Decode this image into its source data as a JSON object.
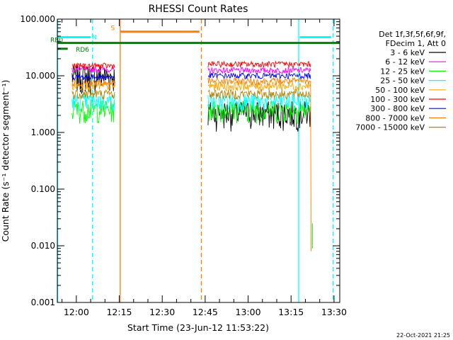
{
  "chart_data": {
    "type": "line",
    "title": "RHESSI Count Rates",
    "xlabel": "Start Time (23-Jun-12 11:53:22)",
    "ylabel": "Count Rate (s⁻¹ detector segment⁻¹)",
    "yscale": "log",
    "ylim": [
      0.001,
      100
    ],
    "xlim": [
      "11:53:22",
      "13:32:00"
    ],
    "x_ticks": [
      "12:00",
      "12:15",
      "12:30",
      "12:45",
      "13:00",
      "13:15",
      "13:30"
    ],
    "y_ticks": [
      "0.001",
      "0.010",
      "0.100",
      "1.000",
      "10.000",
      "100.000"
    ],
    "grid": false,
    "legend_position": "right",
    "legend_header": [
      "Det 1f,3f,5f,6f,9f,",
      "FDecim 1, Att 0"
    ],
    "timestamp": "22-Oct-2021 21:25",
    "segments": [
      [
        "11:58:30",
        "12:13:30"
      ],
      [
        "12:46:00",
        "13:22:00"
      ]
    ],
    "series": [
      {
        "name": "3 - 6 keV",
        "color": "#000000",
        "levels": [
          10.0,
          2.3
        ]
      },
      {
        "name": "6 - 12 keV",
        "color": "#ff00ff",
        "levels": [
          13.0,
          12.5
        ]
      },
      {
        "name": "12 - 25 keV",
        "color": "#00ff00",
        "levels": [
          2.6,
          2.6
        ]
      },
      {
        "name": "25 - 50 keV",
        "color": "#00ffff",
        "levels": [
          3.6,
          3.6
        ]
      },
      {
        "name": "50 - 100 keV",
        "color": "#ffa500",
        "levels": [
          6.6,
          6.6
        ]
      },
      {
        "name": "100 - 300 keV",
        "color": "#ff0000",
        "levels": [
          15.0,
          16.0
        ]
      },
      {
        "name": "300 - 800 keV",
        "color": "#0000ff",
        "levels": [
          9.5,
          10.0
        ]
      },
      {
        "name": "800 - 7000 keV",
        "color": "#ff8000",
        "levels": [
          7.5,
          8.0
        ]
      },
      {
        "name": "7000 - 15000 keV",
        "color": "#b8860b",
        "levels": [
          4.8,
          4.8
        ]
      }
    ],
    "flags": [
      {
        "label": "RB0",
        "color": "#008000",
        "y": 38,
        "start": "11:53:22",
        "end": "13:32:00"
      },
      {
        "label": "RD6",
        "color": "#008000",
        "y": 30,
        "start": "11:53:22",
        "end": "11:57:00"
      },
      {
        "label": "N",
        "color": "#00ffff",
        "y": 48,
        "start": "11:53:22",
        "end": "12:05:00"
      },
      {
        "label": "",
        "color": "#00ffff",
        "y": 48,
        "start": "13:18:00",
        "end": "13:29:00"
      },
      {
        "label": "S",
        "color": "#ff8000",
        "y": 60,
        "start": "12:15:30",
        "end": "12:43:00"
      }
    ],
    "vlines": [
      {
        "time": "11:53:30",
        "color": "#00ffff",
        "style": "solid"
      },
      {
        "time": "12:05:40",
        "color": "#00ffff",
        "style": "dashed"
      },
      {
        "time": "12:15:20",
        "color": "#ff8000",
        "style": "solid"
      },
      {
        "time": "12:43:40",
        "color": "#ff8000",
        "style": "dashed"
      },
      {
        "time": "13:17:40",
        "color": "#00ffff",
        "style": "solid"
      },
      {
        "time": "13:29:40",
        "color": "#00ffff",
        "style": "dashed"
      }
    ]
  }
}
